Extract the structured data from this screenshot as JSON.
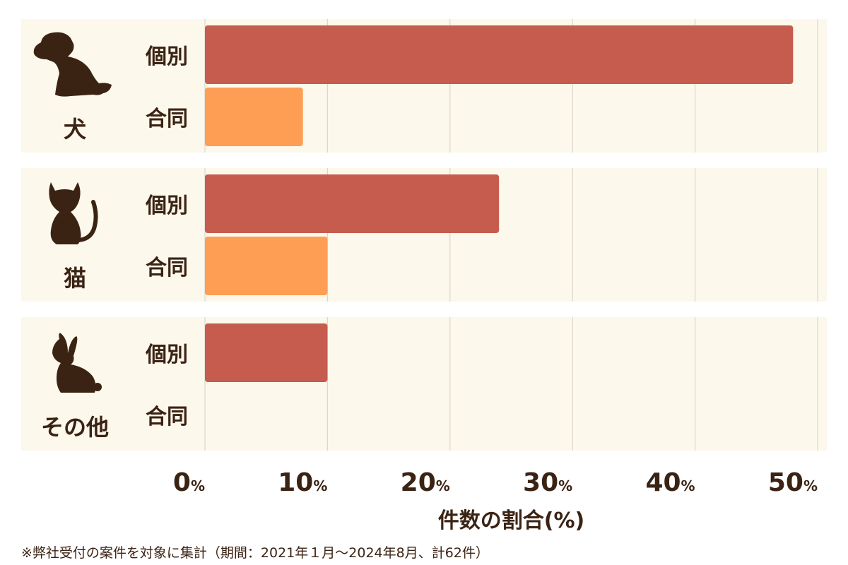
{
  "chart_data": {
    "type": "bar",
    "orientation": "horizontal",
    "groups": [
      {
        "label": "犬",
        "icon": "dog-icon"
      },
      {
        "label": "猫",
        "icon": "cat-icon"
      },
      {
        "label": "その他",
        "icon": "rabbit-icon"
      }
    ],
    "series": [
      {
        "name": "個別",
        "values": [
          48,
          24,
          10
        ],
        "color": "#c65c4d"
      },
      {
        "name": "合同",
        "values": [
          8,
          10,
          0
        ],
        "color": "#fe9e54"
      }
    ],
    "x_ticks": [
      "0",
      "10",
      "20",
      "30",
      "40",
      "50"
    ],
    "tick_unit": "%",
    "xlim": [
      0,
      50
    ],
    "xlabel": "件数の割合(%)",
    "grid": true,
    "legend": "none"
  },
  "footnote": "※弊社受付の案件を対象に集計（期間：2021年１月〜2024年8月、計62件）",
  "colors": {
    "panel_bg": "#fcf8ec",
    "grid": "#dcd6cc",
    "text": "#3b2314"
  }
}
